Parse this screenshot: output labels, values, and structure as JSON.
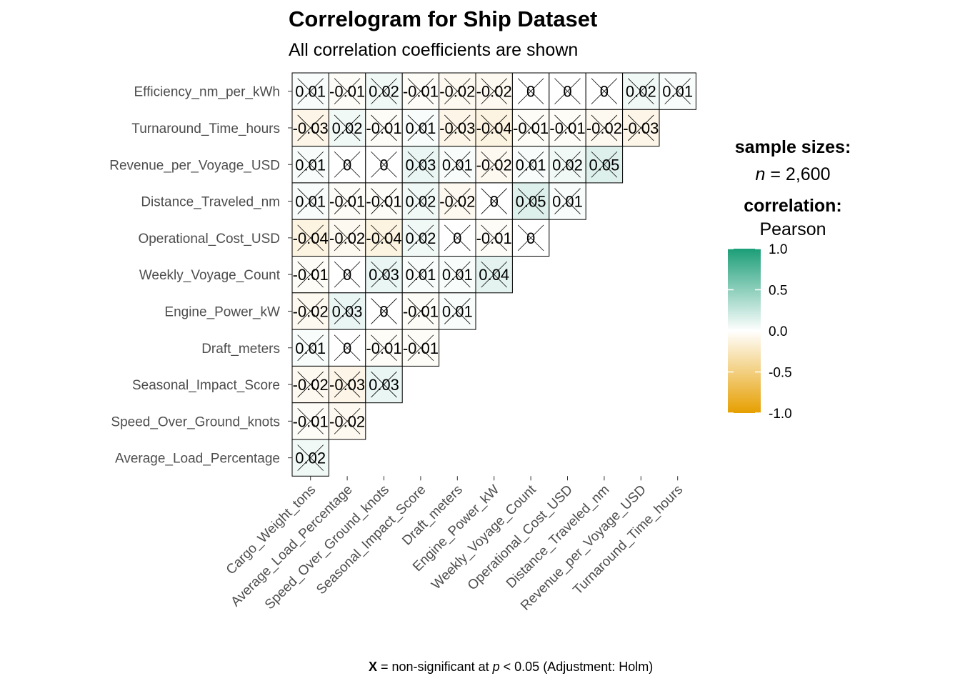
{
  "chart_data": {
    "type": "heatmap",
    "title": "Correlogram for Ship Dataset",
    "subtitle": "All correlation coefficients are shown",
    "x_labels": [
      "Cargo_Weight_tons",
      "Average_Load_Percentage",
      "Speed_Over_Ground_knots",
      "Seasonal_Impact_Score",
      "Draft_meters",
      "Engine_Power_kW",
      "Weekly_Voyage_Count",
      "Operational_Cost_USD",
      "Distance_Traveled_nm",
      "Revenue_per_Voyage_USD",
      "Turnaround_Time_hours"
    ],
    "y_labels": [
      "Efficiency_nm_per_kWh",
      "Turnaround_Time_hours",
      "Revenue_per_Voyage_USD",
      "Distance_Traveled_nm",
      "Operational_Cost_USD",
      "Weekly_Voyage_Count",
      "Engine_Power_kW",
      "Draft_meters",
      "Seasonal_Impact_Score",
      "Speed_Over_Ground_knots",
      "Average_Load_Percentage"
    ],
    "rows": [
      [
        "0.01",
        "-0.01",
        "0.02",
        "-0.01",
        "-0.02",
        "-0.02",
        "0",
        "0",
        "0",
        "0.02",
        "0.01"
      ],
      [
        "-0.03",
        "0.02",
        "-0.01",
        "0.01",
        "-0.03",
        "-0.04",
        "-0.01",
        "-0.01",
        "-0.02",
        "-0.03"
      ],
      [
        "0.01",
        "0",
        "0",
        "0.03",
        "0.01",
        "-0.02",
        "0.01",
        "0.02",
        "0.05"
      ],
      [
        "0.01",
        "-0.01",
        "-0.01",
        "0.02",
        "-0.02",
        "0",
        "0.05",
        "0.01"
      ],
      [
        "-0.04",
        "-0.02",
        "-0.04",
        "0.02",
        "0",
        "-0.01",
        "0"
      ],
      [
        "-0.01",
        "0",
        "0.03",
        "0.01",
        "0.01",
        "0.04"
      ],
      [
        "-0.02",
        "0.03",
        "0",
        "-0.01",
        "0.01"
      ],
      [
        "0.01",
        "0",
        "-0.01",
        "-0.01"
      ],
      [
        "-0.02",
        "-0.03",
        "0.03"
      ],
      [
        "-0.01",
        "-0.02"
      ],
      [
        "0.02"
      ]
    ],
    "all_non_significant": true,
    "legend": {
      "sample_heading": "sample sizes:",
      "n_label": "n",
      "n_value": " = 2,600",
      "corr_heading": "correlation:",
      "method": "Pearson",
      "ticks": [
        "1.0",
        "0.5",
        "0.0",
        "-0.5",
        "-1.0"
      ],
      "colors": {
        "high": "#1b9e77",
        "mid": "#ffffff",
        "low": "#e69f00"
      }
    },
    "caption": {
      "symbol": "X",
      "text1": " = non-significant at ",
      "p": "p",
      "text2": " < 0.05 (Adjustment: Holm)"
    }
  }
}
